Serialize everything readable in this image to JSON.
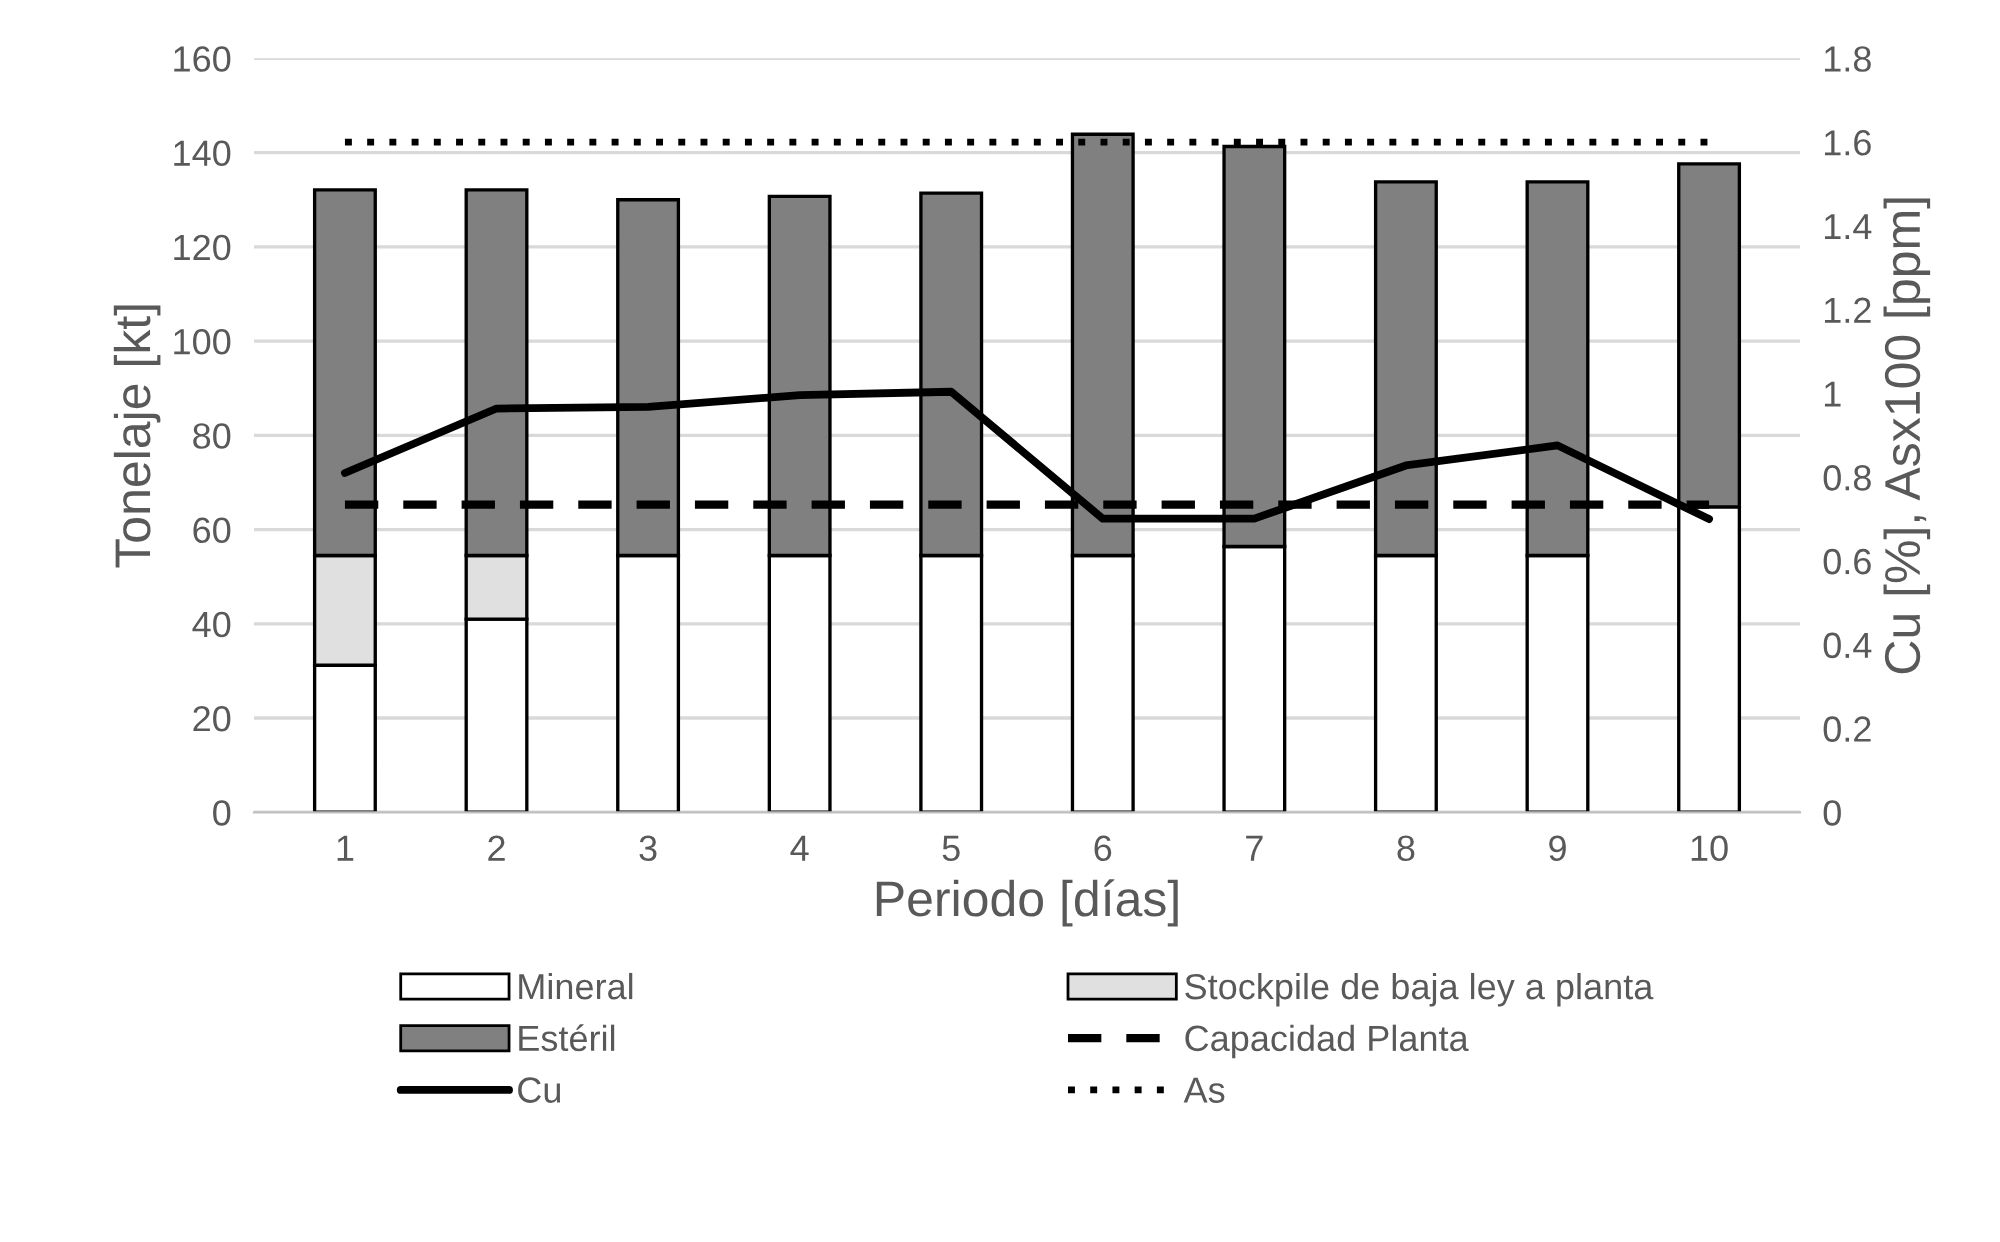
{
  "chart_data": {
    "type": "bar",
    "stacked": true,
    "xlabel": "Periodo [días]",
    "ylabel": "Tonelaje [kt]",
    "y2label": "Cu [%], Asx100 [ppm]",
    "categories": [
      "1",
      "2",
      "3",
      "4",
      "5",
      "6",
      "7",
      "8",
      "9",
      "10"
    ],
    "series": [
      {
        "name": "Mineral",
        "color": "#ffffff",
        "values": [
          31.2,
          41,
          54.5,
          54.5,
          54.5,
          54.5,
          56.4,
          54.5,
          54.5,
          64.8
        ]
      },
      {
        "name": "Stockpile de baja ley a planta",
        "color": "#e0e0e0",
        "values": [
          23.3,
          13.5,
          0,
          0,
          0,
          0,
          0,
          0,
          0,
          0
        ]
      },
      {
        "name": "Estéril",
        "color": "#808080",
        "values": [
          77.6,
          77.6,
          75.5,
          76.2,
          76.9,
          89.4,
          84.9,
          79.3,
          79.3,
          72.8
        ]
      },
      {
        "name": "Capacidad Planta",
        "type": "line",
        "line_style": "dashed",
        "color": "#000000",
        "values": [
          65.3,
          65.3,
          65.3,
          65.3,
          65.3,
          65.3,
          65.3,
          65.3,
          65.3,
          65.3
        ]
      },
      {
        "name": "Cu",
        "type": "line",
        "line_style": "solid",
        "axis": "y2",
        "color": "#000000",
        "values": [
          0.81,
          0.964,
          0.968,
          0.996,
          1.004,
          0.701,
          0.701,
          0.828,
          0.876,
          0.7
        ]
      },
      {
        "name": "As",
        "type": "line",
        "line_style": "dotted",
        "axis": "y2",
        "color": "#000000",
        "values": [
          1.6,
          1.6,
          1.6,
          1.6,
          1.6,
          1.6,
          1.6,
          1.6,
          1.6,
          1.6
        ]
      }
    ],
    "ylim": [
      0,
      160
    ],
    "yticks": [
      0,
      20,
      40,
      60,
      80,
      100,
      120,
      140,
      160
    ],
    "y2lim": [
      0,
      1.8
    ],
    "y2ticks": [
      0,
      0.2,
      0.4,
      0.6,
      0.8,
      1,
      1.2,
      1.4,
      1.6,
      1.8
    ],
    "grid": "y",
    "legend": "bottom"
  }
}
